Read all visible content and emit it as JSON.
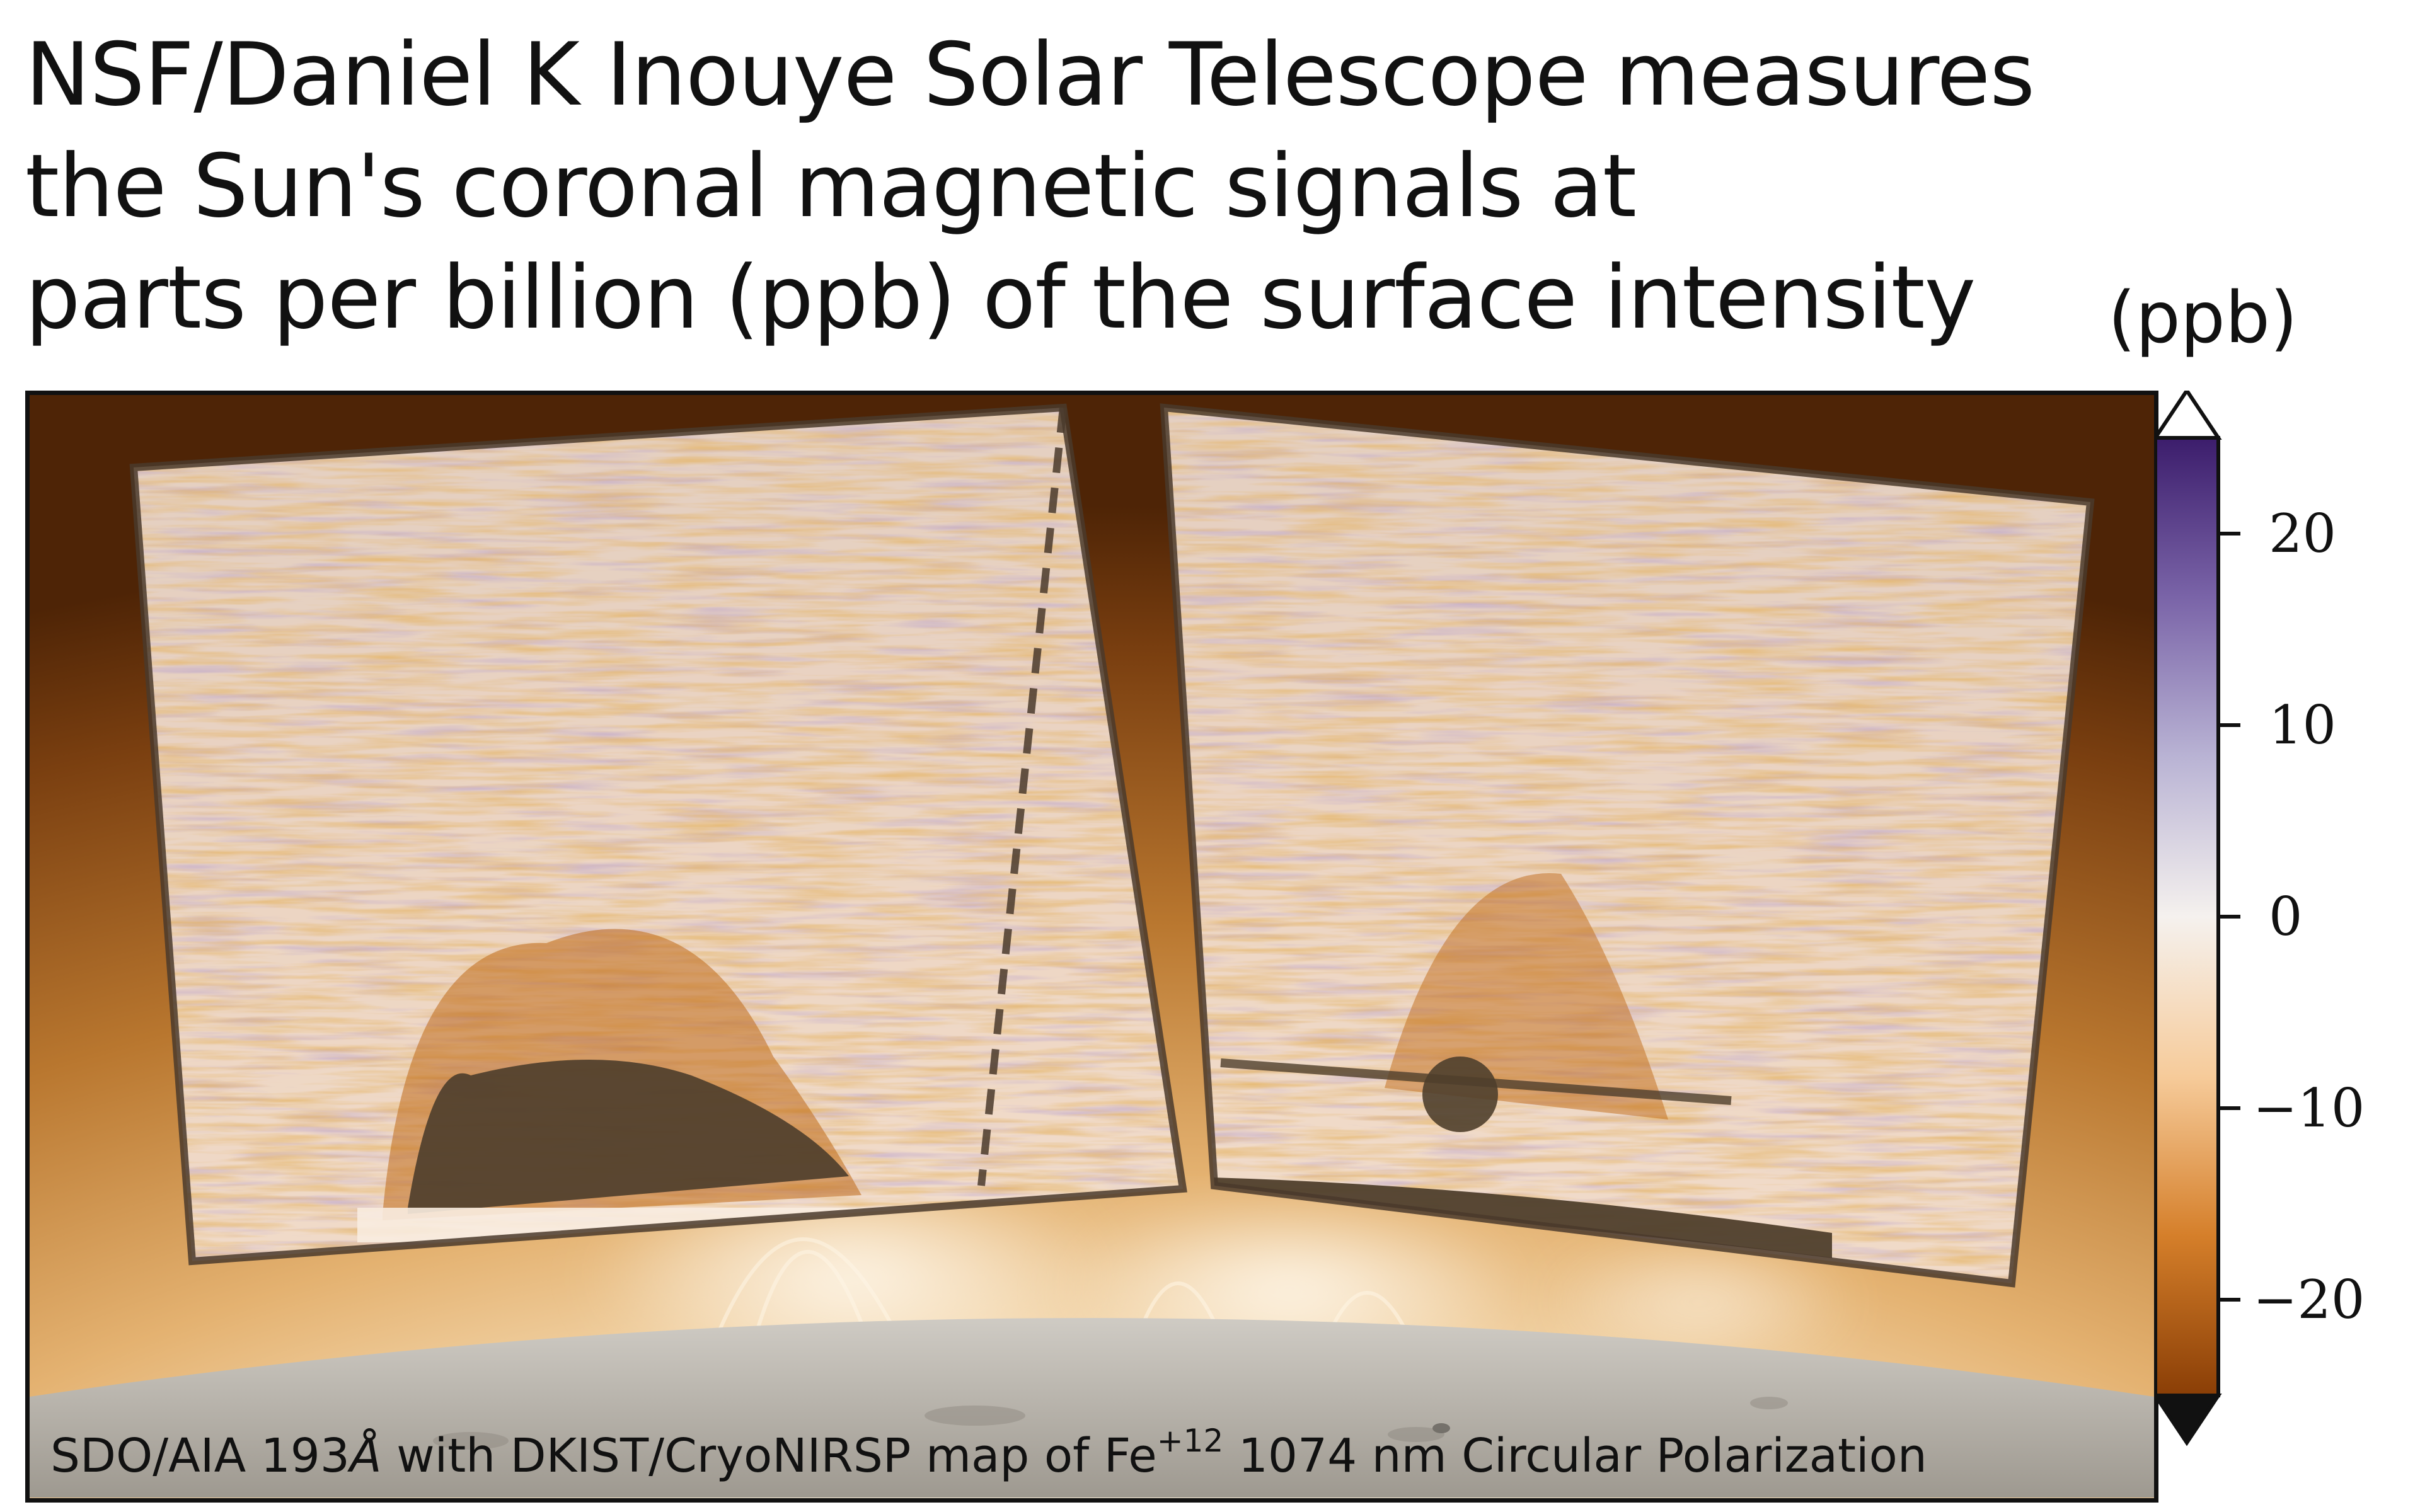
{
  "headline": {
    "line1": "NSF/Daniel K Inouye Solar Telescope measures",
    "line2": "the Sun's coronal magnetic signals at",
    "line3": "parts per billion (ppb) of the surface intensity"
  },
  "colorbar": {
    "unit": "(ppb)",
    "range": [
      -25,
      25
    ],
    "ticks": [
      {
        "value": 20,
        "label": "20"
      },
      {
        "value": 10,
        "label": "10"
      },
      {
        "value": 0,
        "label": "0"
      },
      {
        "value": -10,
        "label": "−10"
      },
      {
        "value": -20,
        "label": "−20"
      }
    ],
    "extend": "both",
    "colormap": [
      "#8a3e06",
      "#d57f2a",
      "#f6cb9a",
      "#f5f1ee",
      "#b9b3d4",
      "#7a64a8",
      "#3c1d6c"
    ]
  },
  "caption": {
    "prefix": "SDO/AIA 193",
    "wavelength_unit": "Å",
    "middle": " with  DKIST/CryoNIRSP map of Fe",
    "ion_superscript": "+12",
    "suffix": " 1074 nm Circular Polarization"
  },
  "colors": {
    "corona_dark": "#5b2d08",
    "corona_light": "#c98a45",
    "disk": "#b8b3ab"
  }
}
